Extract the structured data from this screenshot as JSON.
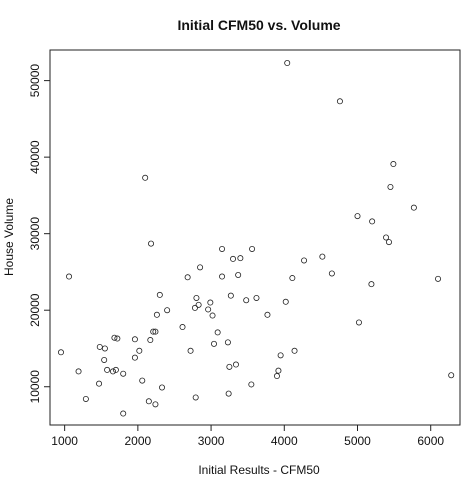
{
  "chart_data": {
    "type": "scatter",
    "title": "Initial CFM50 vs. Volume",
    "xlabel": "Initial Results - CFM50",
    "ylabel": "House Volume",
    "xlim": [
      800,
      6400
    ],
    "ylim": [
      5000,
      54000
    ],
    "x_ticks": [
      "1000",
      "2000",
      "3000",
      "4000",
      "5000",
      "6000"
    ],
    "y_ticks": [
      "10000",
      "20000",
      "30000",
      "40000",
      "50000"
    ],
    "grid": false,
    "legend": "none",
    "points": [
      {
        "x": 950,
        "y": 14500
      },
      {
        "x": 1060,
        "y": 24400
      },
      {
        "x": 1190,
        "y": 12000
      },
      {
        "x": 1290,
        "y": 8400
      },
      {
        "x": 1470,
        "y": 10400
      },
      {
        "x": 1480,
        "y": 15200
      },
      {
        "x": 1540,
        "y": 13500
      },
      {
        "x": 1550,
        "y": 15000
      },
      {
        "x": 1580,
        "y": 12200
      },
      {
        "x": 1660,
        "y": 12000
      },
      {
        "x": 1680,
        "y": 16400
      },
      {
        "x": 1720,
        "y": 16300
      },
      {
        "x": 1700,
        "y": 12200
      },
      {
        "x": 1800,
        "y": 11700
      },
      {
        "x": 1800,
        "y": 6500
      },
      {
        "x": 1960,
        "y": 13800
      },
      {
        "x": 1960,
        "y": 16200
      },
      {
        "x": 2020,
        "y": 14700
      },
      {
        "x": 2060,
        "y": 10800
      },
      {
        "x": 2100,
        "y": 37300
      },
      {
        "x": 2150,
        "y": 8100
      },
      {
        "x": 2170,
        "y": 16100
      },
      {
        "x": 2180,
        "y": 28700
      },
      {
        "x": 2210,
        "y": 17200
      },
      {
        "x": 2240,
        "y": 7700
      },
      {
        "x": 2240,
        "y": 17200
      },
      {
        "x": 2260,
        "y": 19400
      },
      {
        "x": 2300,
        "y": 22000
      },
      {
        "x": 2330,
        "y": 9900
      },
      {
        "x": 2400,
        "y": 20000
      },
      {
        "x": 2610,
        "y": 17800
      },
      {
        "x": 2680,
        "y": 24300
      },
      {
        "x": 2720,
        "y": 14700
      },
      {
        "x": 2780,
        "y": 20300
      },
      {
        "x": 2790,
        "y": 8600
      },
      {
        "x": 2800,
        "y": 21600
      },
      {
        "x": 2830,
        "y": 20700
      },
      {
        "x": 2850,
        "y": 25600
      },
      {
        "x": 2960,
        "y": 20100
      },
      {
        "x": 2990,
        "y": 21000
      },
      {
        "x": 3020,
        "y": 19300
      },
      {
        "x": 3040,
        "y": 15600
      },
      {
        "x": 3090,
        "y": 17100
      },
      {
        "x": 3150,
        "y": 24400
      },
      {
        "x": 3150,
        "y": 28000
      },
      {
        "x": 3230,
        "y": 15800
      },
      {
        "x": 3240,
        "y": 9100
      },
      {
        "x": 3250,
        "y": 12600
      },
      {
        "x": 3270,
        "y": 21900
      },
      {
        "x": 3300,
        "y": 26700
      },
      {
        "x": 3340,
        "y": 12900
      },
      {
        "x": 3370,
        "y": 24600
      },
      {
        "x": 3400,
        "y": 26800
      },
      {
        "x": 3480,
        "y": 21300
      },
      {
        "x": 3550,
        "y": 10300
      },
      {
        "x": 3560,
        "y": 28000
      },
      {
        "x": 3620,
        "y": 21600
      },
      {
        "x": 3770,
        "y": 19400
      },
      {
        "x": 3900,
        "y": 11400
      },
      {
        "x": 3920,
        "y": 12100
      },
      {
        "x": 3950,
        "y": 14100
      },
      {
        "x": 4020,
        "y": 21100
      },
      {
        "x": 4040,
        "y": 52300
      },
      {
        "x": 4110,
        "y": 24200
      },
      {
        "x": 4140,
        "y": 14700
      },
      {
        "x": 4270,
        "y": 26500
      },
      {
        "x": 4520,
        "y": 27000
      },
      {
        "x": 4650,
        "y": 24800
      },
      {
        "x": 4760,
        "y": 47300
      },
      {
        "x": 5000,
        "y": 32300
      },
      {
        "x": 5020,
        "y": 18400
      },
      {
        "x": 5190,
        "y": 23400
      },
      {
        "x": 5200,
        "y": 31600
      },
      {
        "x": 5390,
        "y": 29500
      },
      {
        "x": 5430,
        "y": 28900
      },
      {
        "x": 5450,
        "y": 36100
      },
      {
        "x": 5490,
        "y": 39100
      },
      {
        "x": 5770,
        "y": 33400
      },
      {
        "x": 6100,
        "y": 24100
      },
      {
        "x": 6280,
        "y": 11500
      }
    ]
  }
}
